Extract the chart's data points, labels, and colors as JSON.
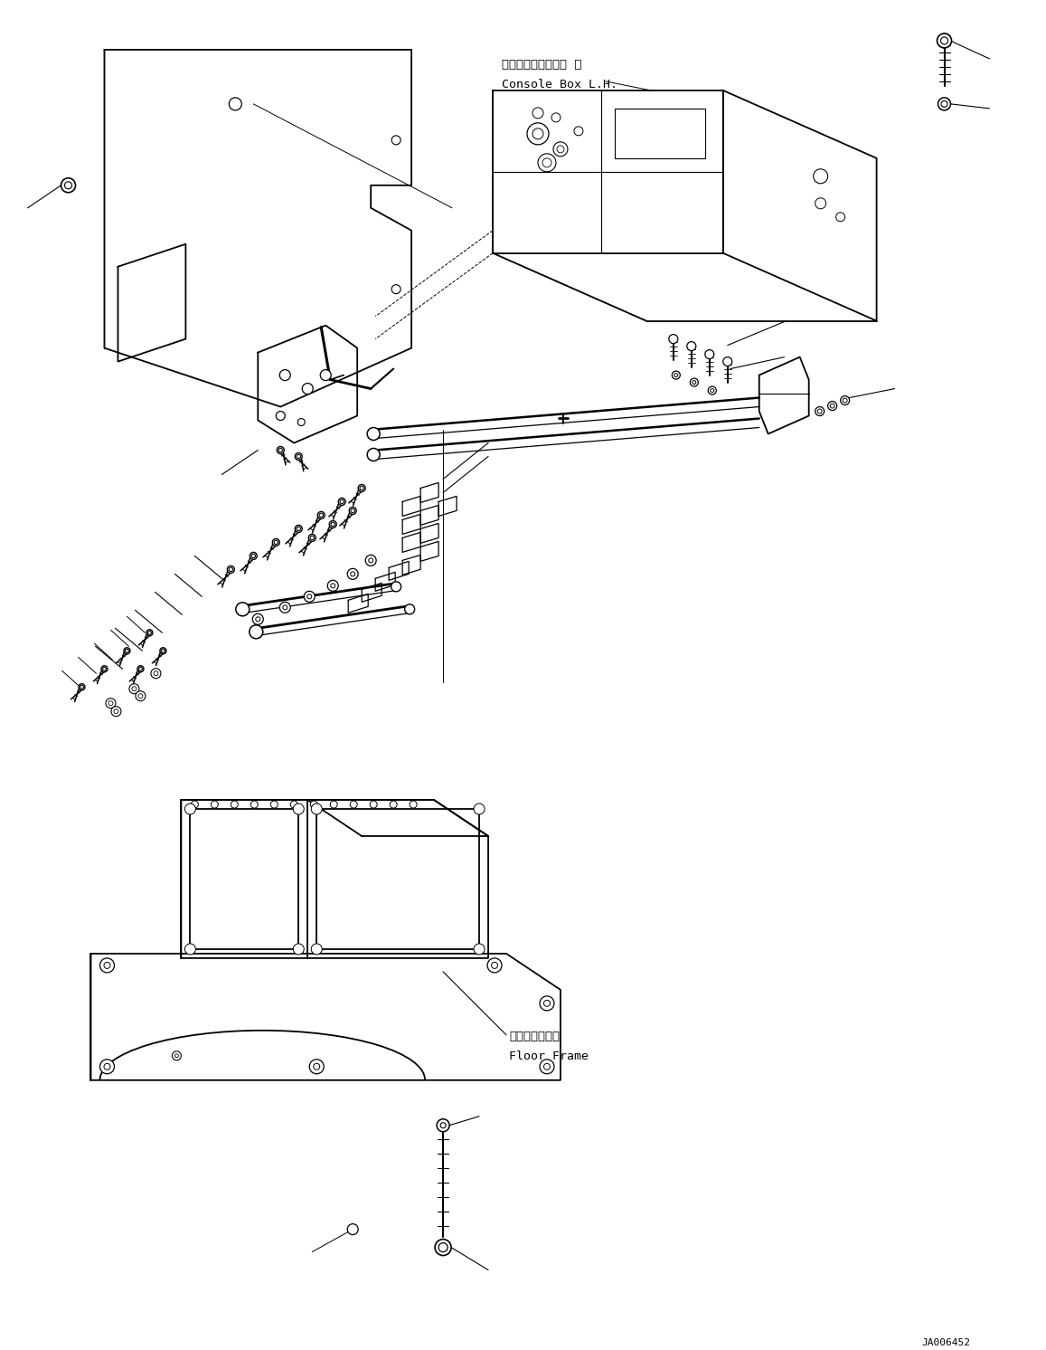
{
  "background_color": "#ffffff",
  "line_color": "#000000",
  "lw_main": 1.3,
  "lw_thin": 0.7,
  "lw_leader": 0.8,
  "watermark": "JA006452",
  "labels": {
    "console_box_jp": "コンソールボックス  左",
    "console_box_en": "Console Box L.H.",
    "floor_frame_jp": "フロアフレーム",
    "floor_frame_en": "Floor Frame"
  },
  "fig_width": 11.57,
  "fig_height": 14.92,
  "dpi": 100
}
